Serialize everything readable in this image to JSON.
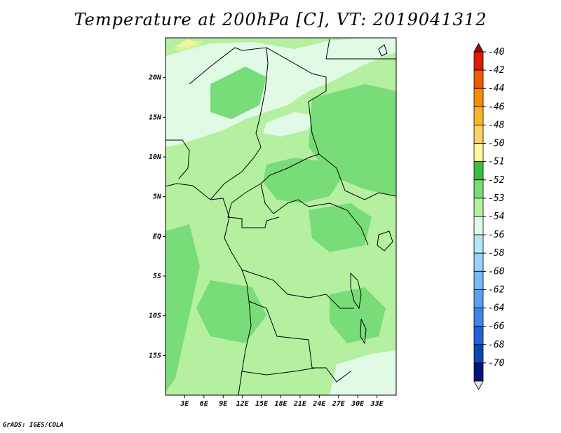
{
  "title": "Temperature at 200hPa [C], VT: 2019041312",
  "credit": "GrADS: IGES/COLA",
  "map": {
    "lon_range": [
      0,
      36
    ],
    "lat_range": [
      -20,
      25
    ],
    "lat_ticks": [
      {
        "value": 20,
        "label": "20N"
      },
      {
        "value": 15,
        "label": "15N"
      },
      {
        "value": 10,
        "label": "10N"
      },
      {
        "value": 5,
        "label": "5N"
      },
      {
        "value": 0,
        "label": "EQ"
      },
      {
        "value": -5,
        "label": "5S"
      },
      {
        "value": -10,
        "label": "10S"
      },
      {
        "value": -15,
        "label": "15S"
      }
    ],
    "lon_ticks": [
      {
        "value": 3,
        "label": "3E"
      },
      {
        "value": 6,
        "label": "6E"
      },
      {
        "value": 9,
        "label": "9E"
      },
      {
        "value": 12,
        "label": "12E"
      },
      {
        "value": 15,
        "label": "15E"
      },
      {
        "value": 18,
        "label": "18E"
      },
      {
        "value": 21,
        "label": "21E"
      },
      {
        "value": 24,
        "label": "24E"
      },
      {
        "value": 27,
        "label": "27E"
      },
      {
        "value": 30,
        "label": "30E"
      },
      {
        "value": 33,
        "label": "33E"
      }
    ]
  },
  "colorbar": {
    "colors": [
      "#a50000",
      "#dc1e00",
      "#f05a00",
      "#fa8c00",
      "#fab428",
      "#fad264",
      "#fff6a0",
      "#3cbe3c",
      "#78dc78",
      "#b4f0a0",
      "#e1fae6",
      "#b4e6fa",
      "#96d2fa",
      "#78b9fa",
      "#5aa0f0",
      "#3c87e6",
      "#1e64dc",
      "#0a46b4",
      "#00147a",
      "#e6e6fa"
    ],
    "labels": [
      "-40",
      "-42",
      "-44",
      "-46",
      "-48",
      "-50",
      "-51",
      "-52",
      "-53",
      "-54",
      "-56",
      "-58",
      "-60",
      "-62",
      "-64",
      "-66",
      "-68",
      "-70"
    ]
  }
}
